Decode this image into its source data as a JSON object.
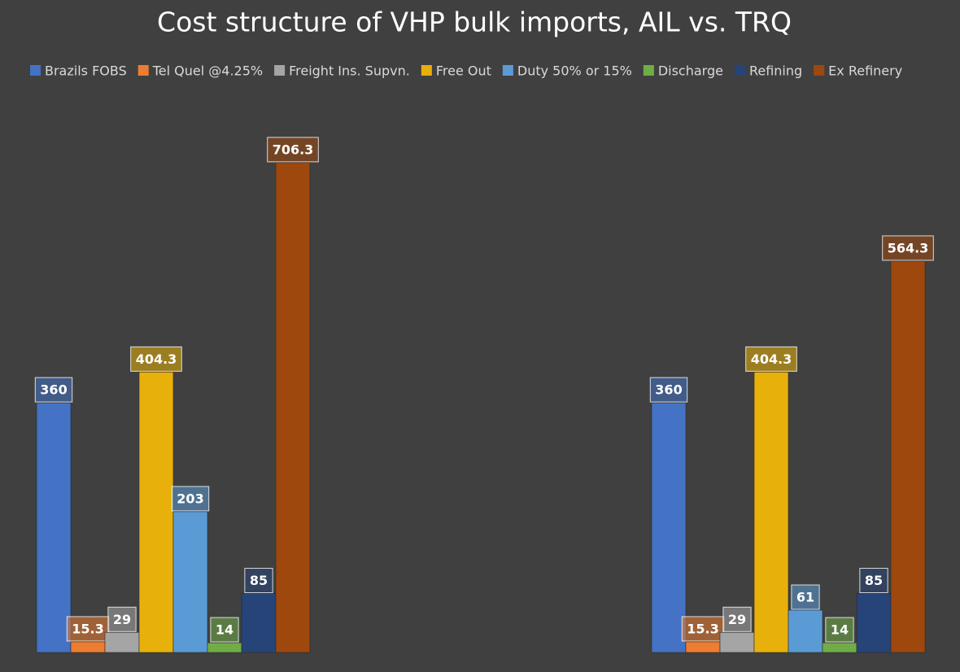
{
  "chart_data": {
    "type": "bar",
    "title": "Cost structure of VHP bulk imports, AIL vs. TRQ",
    "categories": [
      null,
      null
    ],
    "series": [
      {
        "name": "Brazils FOBS",
        "color": "#4472c4",
        "values": [
          360,
          360
        ]
      },
      {
        "name": "Tel Quel @4.25%",
        "color": "#ed7d31",
        "values": [
          15.3,
          15.3
        ]
      },
      {
        "name": "Freight Ins. Supvn.",
        "color": "#a5a5a5",
        "values": [
          29,
          29
        ]
      },
      {
        "name": "Free Out",
        "color": "#e8b00a",
        "values": [
          404.3,
          404.3
        ]
      },
      {
        "name": "Duty 50% or 15%",
        "color": "#5b9bd5",
        "values": [
          203,
          61
        ]
      },
      {
        "name": "Discharge",
        "color": "#70ad47",
        "values": [
          14,
          14
        ]
      },
      {
        "name": "Refining",
        "color": "#264478",
        "values": [
          85,
          85
        ]
      },
      {
        "name": "Ex Refinery",
        "color": "#9e480e",
        "values": [
          706.3,
          564.3
        ]
      }
    ],
    "ylim": [
      0,
      800
    ],
    "legend": "top"
  }
}
